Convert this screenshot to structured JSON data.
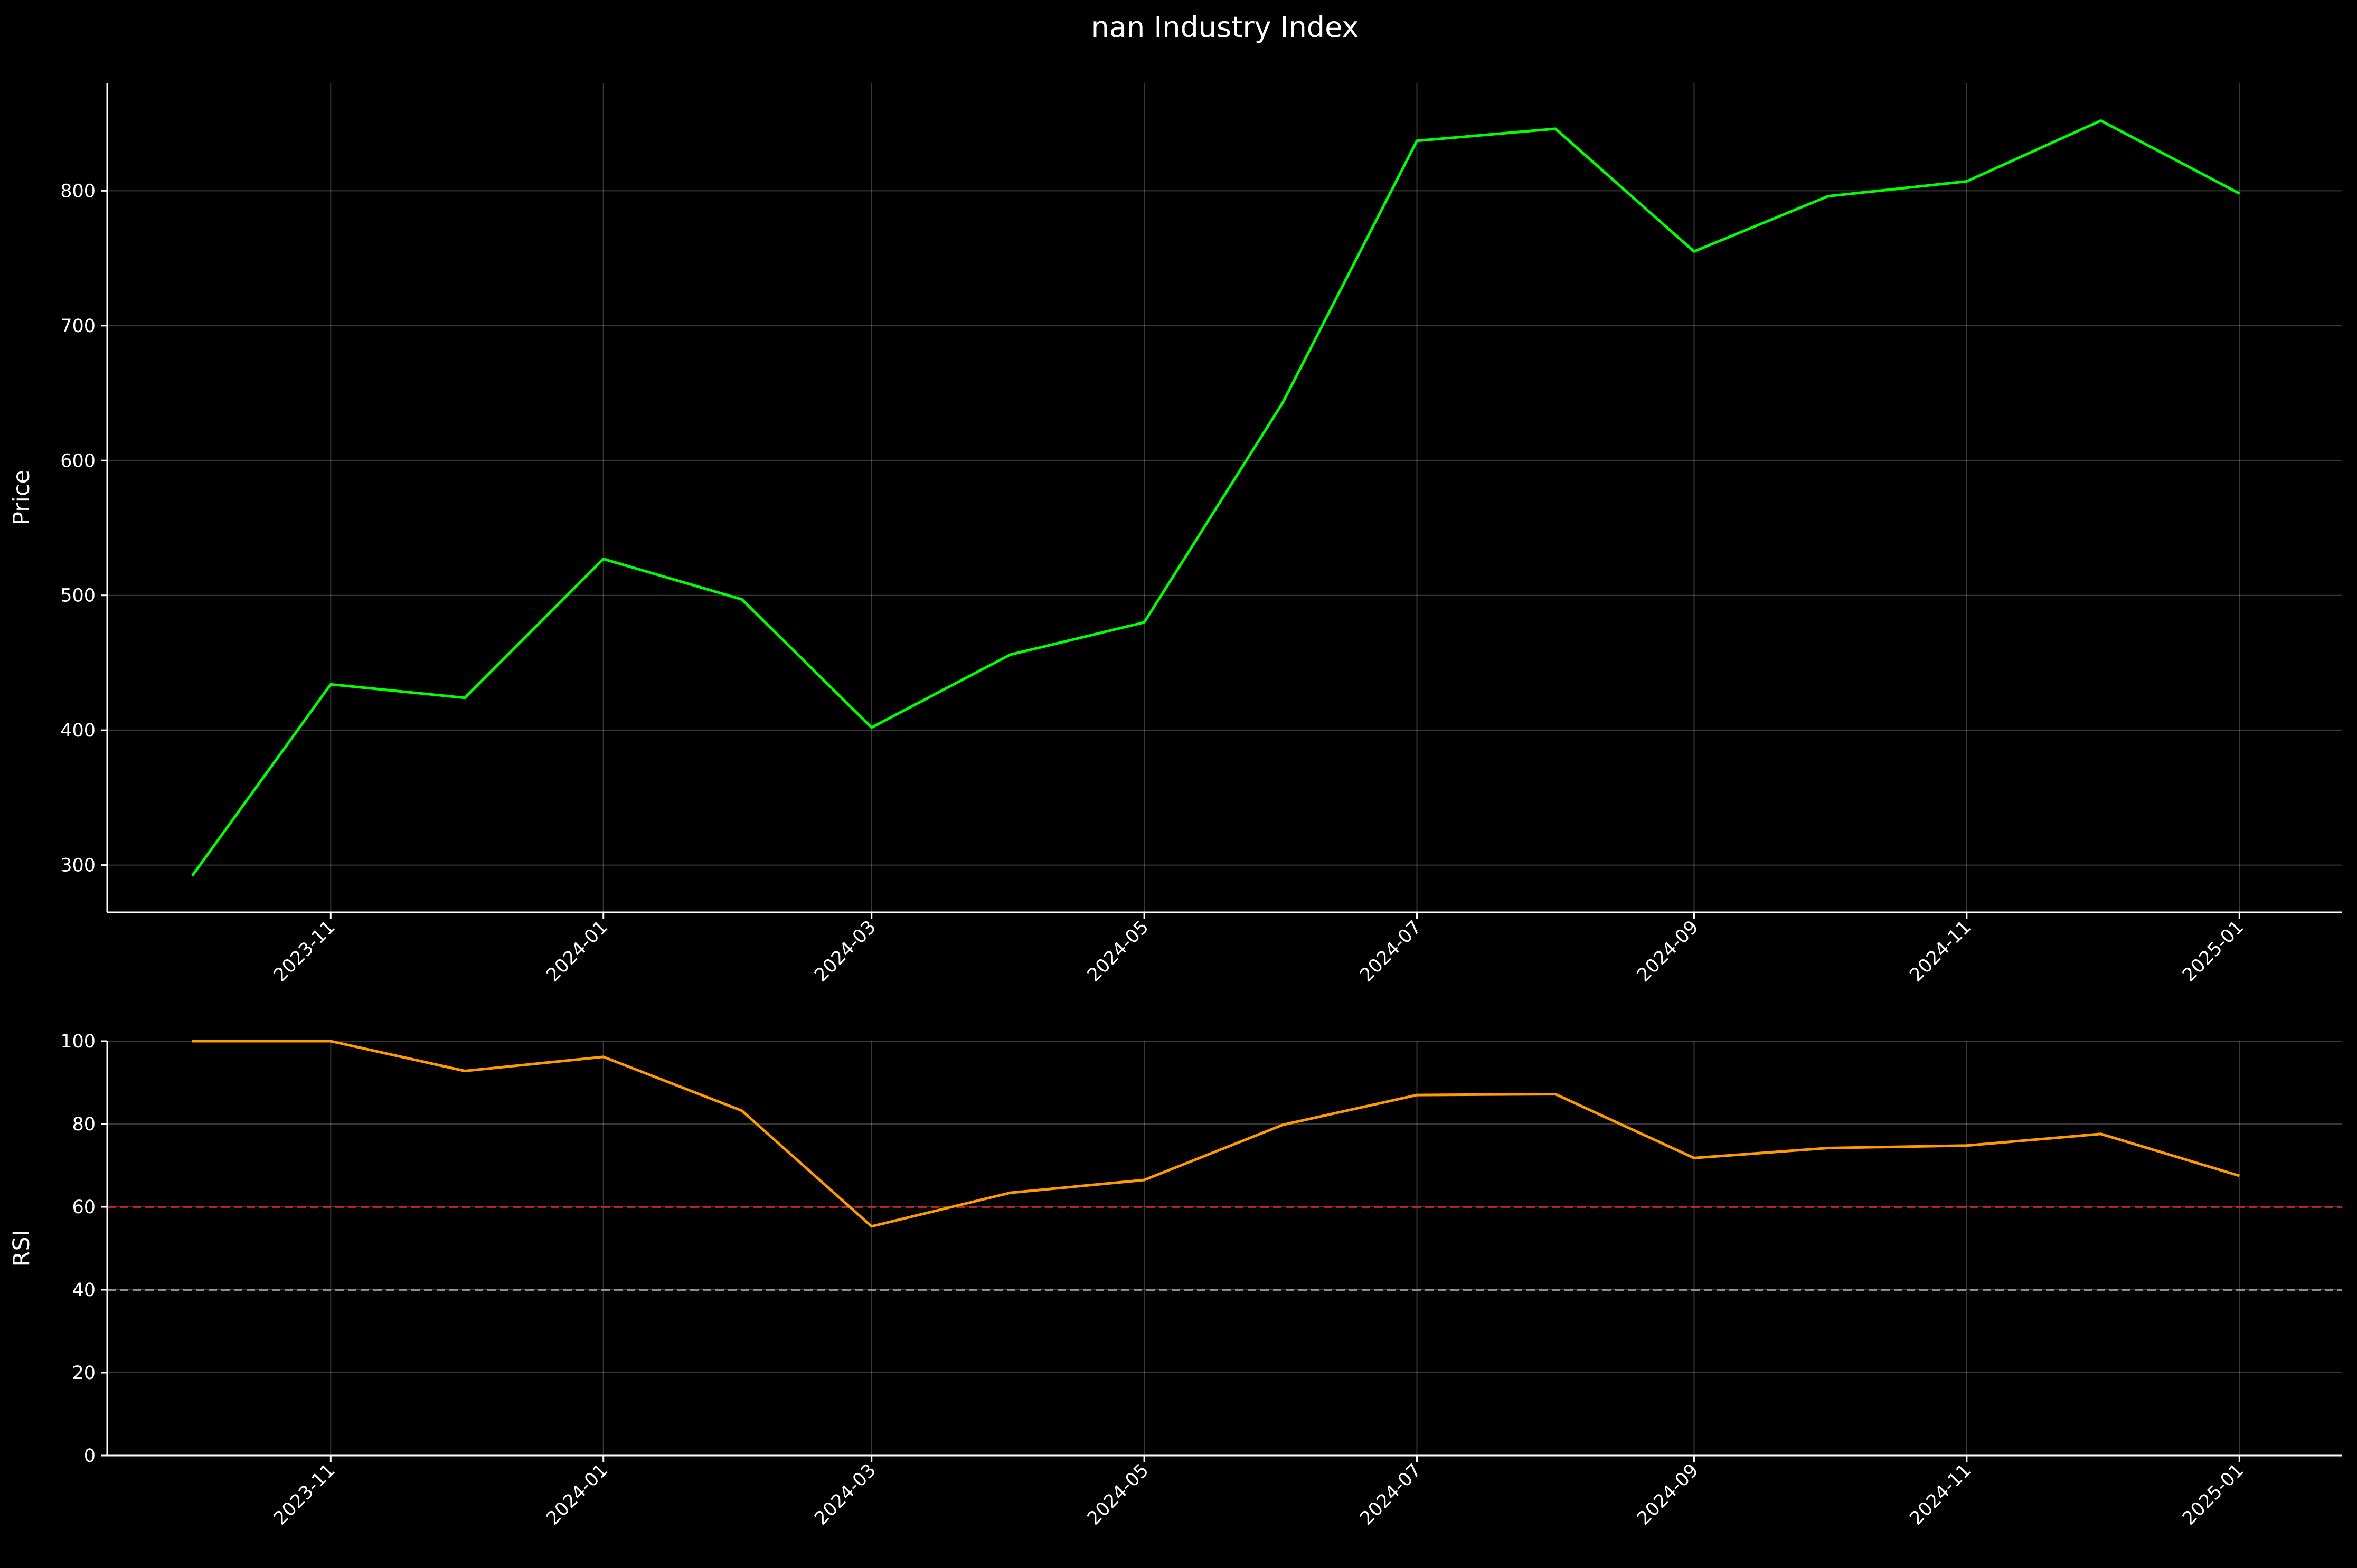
{
  "figure": {
    "title": "nan Industry Index",
    "background": "#000000",
    "axis_color": "#ffffff",
    "grid_color": "#ffffff",
    "grid": true
  },
  "chart_data": [
    {
      "type": "line",
      "ylabel": "Price",
      "xlabel": "",
      "ylim": [
        265,
        880
      ],
      "yticks": [
        300,
        400,
        500,
        600,
        700,
        800
      ],
      "xlim": [
        "2023-09-12",
        "2025-01-24"
      ],
      "xticks": [
        "2023-11",
        "2024-01",
        "2024-03",
        "2024-05",
        "2024-07",
        "2024-09",
        "2024-11",
        "2025-01"
      ],
      "series": [
        {
          "color": "#00ff00",
          "x": [
            "2023-10-01",
            "2023-11-01",
            "2023-12-01",
            "2024-01-01",
            "2024-02-01",
            "2024-03-01",
            "2024-04-01",
            "2024-05-01",
            "2024-06-01",
            "2024-07-01",
            "2024-08-01",
            "2024-09-01",
            "2024-10-01",
            "2024-11-01",
            "2024-12-01",
            "2025-01-01"
          ],
          "values": [
            292,
            434,
            424,
            527,
            497,
            402,
            456,
            480,
            643,
            837,
            846,
            755,
            796,
            807,
            852,
            798
          ]
        }
      ]
    },
    {
      "type": "line",
      "ylabel": "RSI",
      "xlabel": "",
      "ylim": [
        0,
        100
      ],
      "yticks": [
        0,
        20,
        40,
        60,
        80,
        100
      ],
      "xlim": [
        "2023-09-12",
        "2025-01-24"
      ],
      "xticks": [
        "2023-11",
        "2024-01",
        "2024-03",
        "2024-05",
        "2024-07",
        "2024-09",
        "2024-11",
        "2025-01"
      ],
      "series": [
        {
          "color": "#ff9900",
          "x": [
            "2023-10-01",
            "2023-11-01",
            "2023-12-01",
            "2024-01-01",
            "2024-02-01",
            "2024-03-01",
            "2024-04-01",
            "2024-05-01",
            "2024-06-01",
            "2024-07-01",
            "2024-08-01",
            "2024-09-01",
            "2024-10-01",
            "2024-11-01",
            "2024-12-01",
            "2025-01-01"
          ],
          "values": [
            100,
            100,
            92.8,
            96.2,
            83.2,
            55.3,
            63.4,
            66.5,
            79.8,
            87.0,
            87.2,
            71.8,
            74.2,
            74.8,
            77.6,
            67.5
          ]
        }
      ],
      "reference_lines": [
        {
          "y": 60,
          "color": "#cc2222",
          "style": "dashed"
        },
        {
          "y": 40,
          "color": "#999999",
          "style": "dashed"
        }
      ]
    }
  ]
}
